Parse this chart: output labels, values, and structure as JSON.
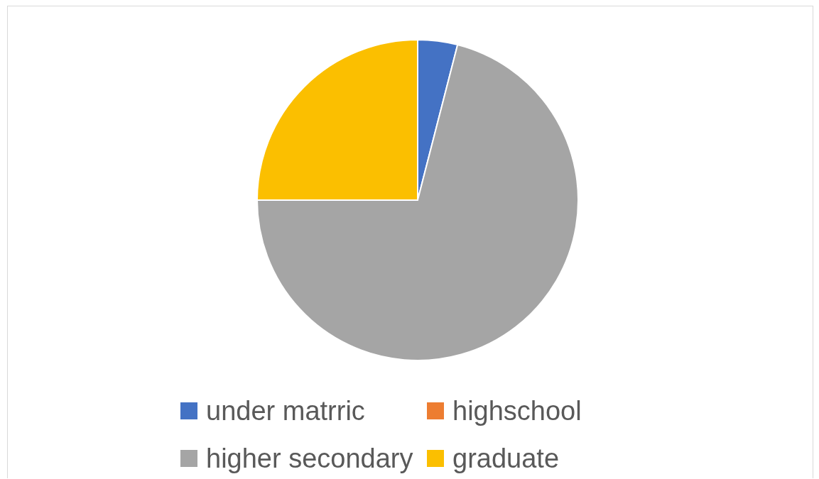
{
  "chart_data": {
    "type": "pie",
    "categories": [
      "under matrric",
      "highschool",
      "higher secondary",
      "graduate"
    ],
    "values": [
      4,
      0,
      71,
      25
    ],
    "colors": [
      "#4472c4",
      "#ed7d31",
      "#a5a5a5",
      "#fbbf00"
    ],
    "legend": "bottom"
  }
}
